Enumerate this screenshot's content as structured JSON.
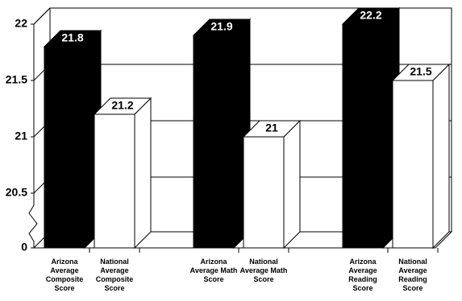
{
  "chart_data": {
    "type": "bar3d",
    "categories": [
      "Arizona Average Composite Score",
      "National Average Composite Score",
      "Arizona Average Math Score",
      "National Average Math Score",
      "Arizona Average Reading Score",
      "National Average Reading Score"
    ],
    "values": [
      21.8,
      21.2,
      21.9,
      21,
      22.2,
      21.5
    ],
    "colors": [
      "#000000",
      "#ffffff",
      "#000000",
      "#ffffff",
      "#000000",
      "#ffffff"
    ],
    "ylim": [
      0,
      22
    ],
    "yticks": [
      0,
      20.5,
      21,
      21.5,
      22
    ],
    "axis_break": [
      0,
      20.5
    ],
    "grid": true
  }
}
